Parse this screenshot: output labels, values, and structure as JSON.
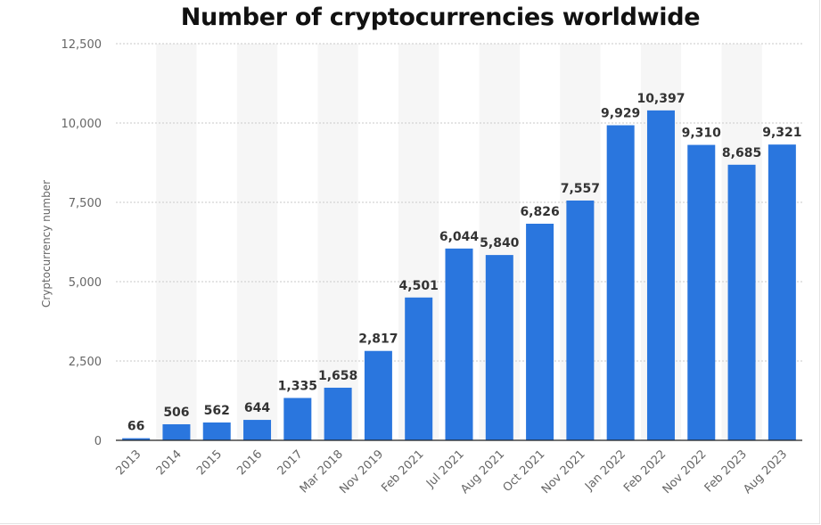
{
  "chart_data": {
    "type": "bar",
    "title": "Number of cryptocurrencies worldwide",
    "xlabel": "",
    "ylabel": "Cryptocurrency number",
    "ylim": [
      0,
      12500
    ],
    "yticks": [
      0,
      2500,
      5000,
      7500,
      10000,
      12500
    ],
    "ytick_labels": [
      "0",
      "2,500",
      "5,000",
      "7,500",
      "10,000",
      "12,500"
    ],
    "categories": [
      "2013",
      "2014",
      "2015",
      "2016",
      "2017",
      "Mar 2018",
      "Nov 2019",
      "Feb 2021",
      "Jul 2021",
      "Aug 2021",
      "Oct 2021",
      "Nov 2021",
      "Jan 2022",
      "Feb 2022",
      "Nov 2022",
      "Feb 2023",
      "Aug 2023"
    ],
    "values": [
      66,
      506,
      562,
      644,
      1335,
      1658,
      2817,
      4501,
      6044,
      5840,
      6826,
      7557,
      9929,
      10397,
      9310,
      8685,
      9321
    ],
    "value_labels": [
      "66",
      "506",
      "562",
      "644",
      "1,335",
      "1,658",
      "2,817",
      "4,501",
      "6,044",
      "5,840",
      "6,826",
      "7,557",
      "9,929",
      "10,397",
      "9,310",
      "8,685",
      "9,321"
    ],
    "grid": true,
    "colors": {
      "bar": "#2a76de",
      "grid": "#c9c9c9",
      "band": "#f6f6f6",
      "axis": "#222222",
      "tick_text": "#666666",
      "value_text": "#333333"
    }
  }
}
